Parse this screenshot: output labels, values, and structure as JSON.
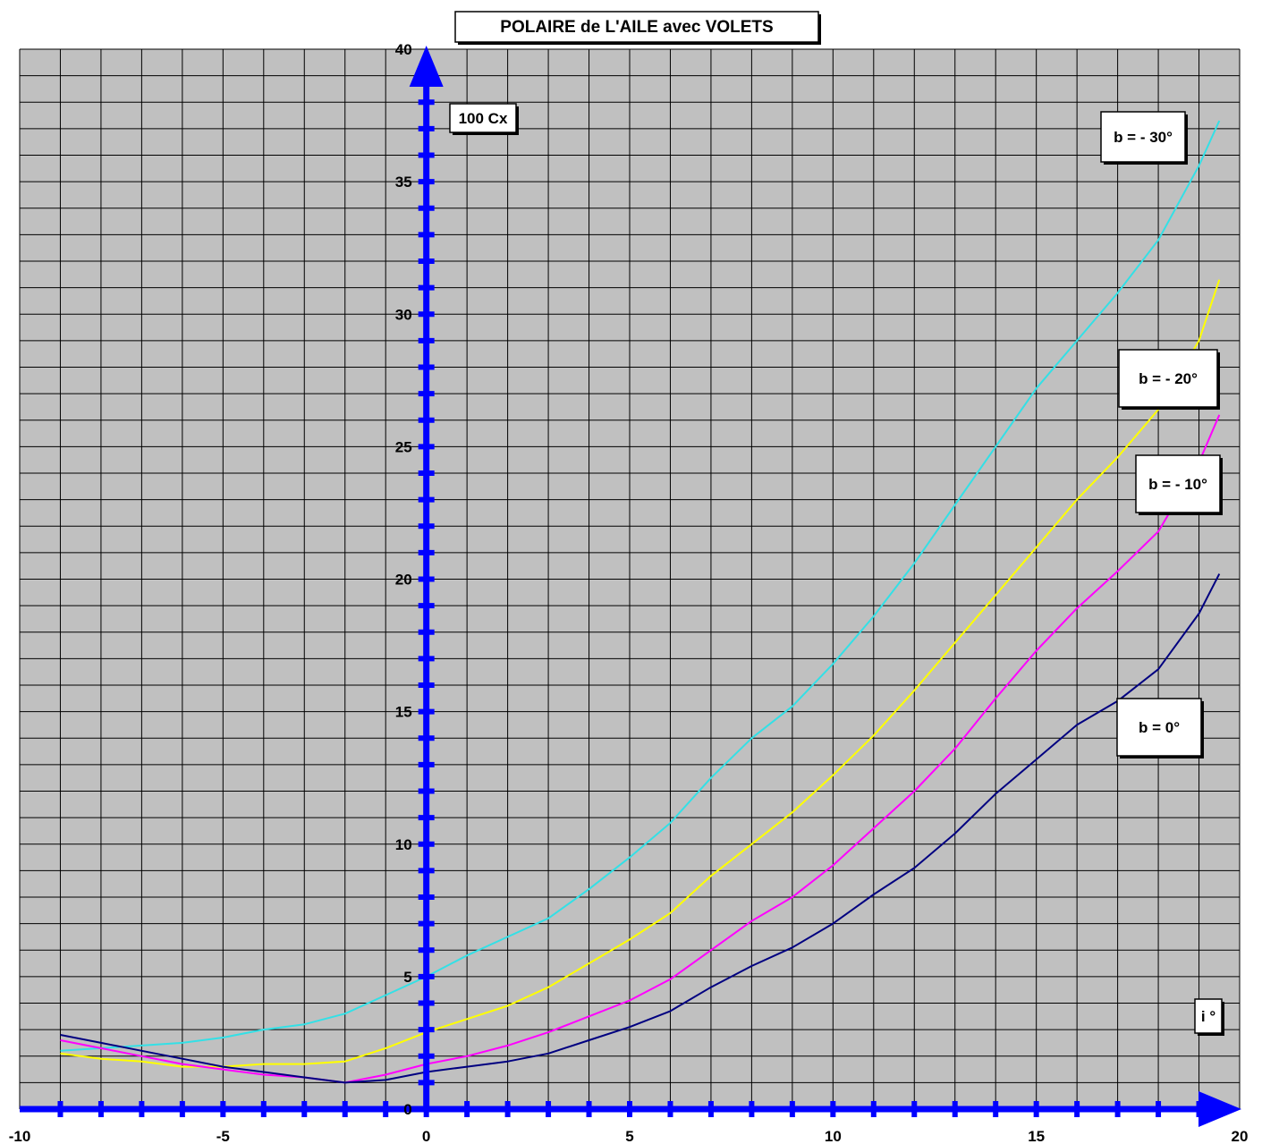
{
  "chart_data": {
    "type": "line",
    "title": "POLAIRE de L'AILE avec VOLETS",
    "xlabel": "i °",
    "ylabel": "100 Cx",
    "xlim": [
      -10,
      20
    ],
    "ylim": [
      0,
      40
    ],
    "x_ticks": [
      "-10",
      "-5",
      "0",
      "5",
      "10",
      "15",
      "20"
    ],
    "y_ticks": [
      "0",
      "5",
      "10",
      "15",
      "20",
      "25",
      "30",
      "35",
      "40"
    ],
    "grid": true,
    "legend": "inline labels near curve ends",
    "colors": {
      "plot_background": "#c0c0c0",
      "grid": "#000000",
      "axes": "#0000ff"
    },
    "series": [
      {
        "name": "b = - 30°",
        "color": "#33e0e6",
        "x": [
          -9,
          -8,
          -7,
          -6,
          -5,
          -4,
          -3,
          -2,
          -1,
          0,
          1,
          2,
          3,
          4,
          5,
          6,
          7,
          8,
          9,
          10,
          11,
          12,
          13,
          14,
          15,
          16,
          17,
          18,
          19,
          19.5
        ],
        "y": [
          2.2,
          2.3,
          2.4,
          2.5,
          2.7,
          3.0,
          3.2,
          3.6,
          4.3,
          5.0,
          5.8,
          6.5,
          7.2,
          8.3,
          9.5,
          10.8,
          12.5,
          14.0,
          15.2,
          16.8,
          18.6,
          20.6,
          22.8,
          25.0,
          27.2,
          29.0,
          30.8,
          32.8,
          35.6,
          37.3
        ]
      },
      {
        "name": "b = - 20°",
        "color": "#ffff00",
        "x": [
          -9,
          -8,
          -7,
          -6,
          -5,
          -4,
          -3,
          -2,
          -1,
          0,
          1,
          2,
          3,
          4,
          5,
          6,
          7,
          8,
          9,
          10,
          11,
          12,
          13,
          14,
          15,
          16,
          17,
          18,
          19,
          19.5
        ],
        "y": [
          2.1,
          1.9,
          1.8,
          1.6,
          1.6,
          1.7,
          1.7,
          1.8,
          2.3,
          2.9,
          3.4,
          3.9,
          4.6,
          5.5,
          6.4,
          7.4,
          8.8,
          10.0,
          11.2,
          12.6,
          14.1,
          15.8,
          17.6,
          19.4,
          21.2,
          23.0,
          24.6,
          26.4,
          29.0,
          31.3
        ]
      },
      {
        "name": "b = - 10°",
        "color": "#ff00ff",
        "x": [
          -9,
          -8,
          -7,
          -6,
          -5,
          -4,
          -3,
          -2,
          -1,
          0,
          1,
          2,
          3,
          4,
          5,
          6,
          7,
          8,
          9,
          10,
          11,
          12,
          13,
          14,
          15,
          16,
          17,
          18,
          19,
          19.5
        ],
        "y": [
          2.6,
          2.3,
          2.0,
          1.7,
          1.5,
          1.3,
          1.2,
          1.0,
          1.3,
          1.7,
          2.0,
          2.4,
          2.9,
          3.5,
          4.1,
          4.9,
          6.0,
          7.1,
          8.0,
          9.2,
          10.6,
          12.0,
          13.6,
          15.5,
          17.3,
          18.9,
          20.3,
          21.8,
          24.4,
          26.2
        ]
      },
      {
        "name": "b = 0°",
        "color": "#000080",
        "x": [
          -9,
          -8,
          -7,
          -6,
          -5,
          -4,
          -3,
          -2,
          -1,
          0,
          1,
          2,
          3,
          4,
          5,
          6,
          7,
          8,
          9,
          10,
          11,
          12,
          13,
          14,
          15,
          16,
          17,
          18,
          19,
          19.5
        ],
        "y": [
          2.8,
          2.5,
          2.2,
          1.9,
          1.6,
          1.4,
          1.2,
          1.0,
          1.1,
          1.4,
          1.6,
          1.8,
          2.1,
          2.6,
          3.1,
          3.7,
          4.6,
          5.4,
          6.1,
          7.0,
          8.1,
          9.1,
          10.4,
          11.9,
          13.2,
          14.5,
          15.4,
          16.6,
          18.7,
          20.2
        ]
      }
    ]
  }
}
